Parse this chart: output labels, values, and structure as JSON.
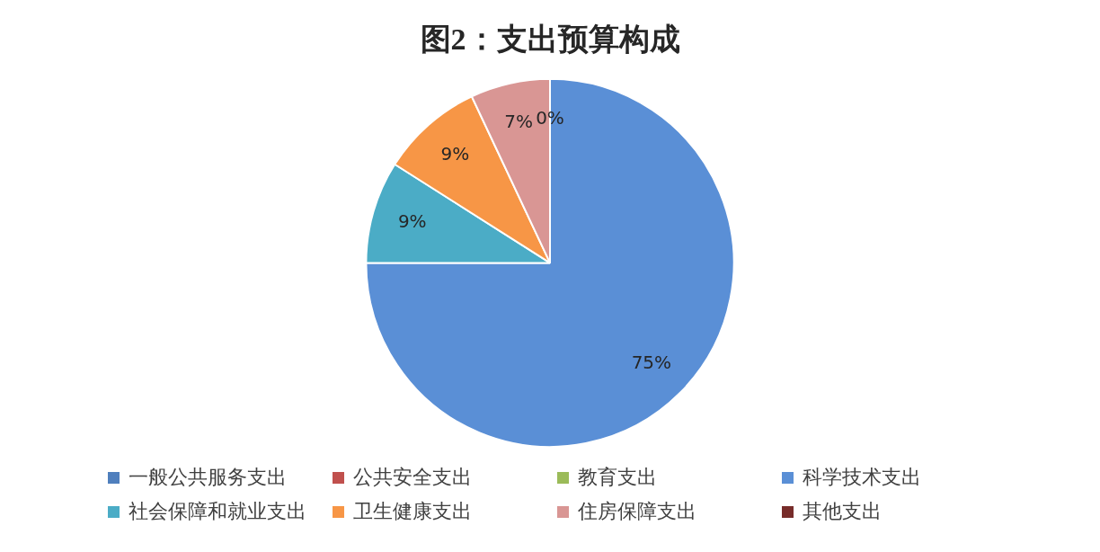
{
  "chart_data": {
    "type": "pie",
    "title": "图2：支出预算构成",
    "categories": [
      "一般公共服务支出",
      "公共安全支出",
      "教育支出",
      "科学技术支出",
      "社会保障和就业支出",
      "卫生健康支出",
      "住房保障支出",
      "其他支出"
    ],
    "values": [
      0,
      0,
      0,
      75,
      9,
      9,
      7,
      0
    ],
    "colors": [
      "#4f7fbd",
      "#c0504d",
      "#9bbb59",
      "#5a8fd6",
      "#4bacc6",
      "#f79646",
      "#d99694",
      "#772c2a"
    ],
    "value_labels": [
      null,
      null,
      null,
      "75%",
      "9%",
      "9%",
      "7%",
      "0%"
    ],
    "legend": "bottom"
  }
}
